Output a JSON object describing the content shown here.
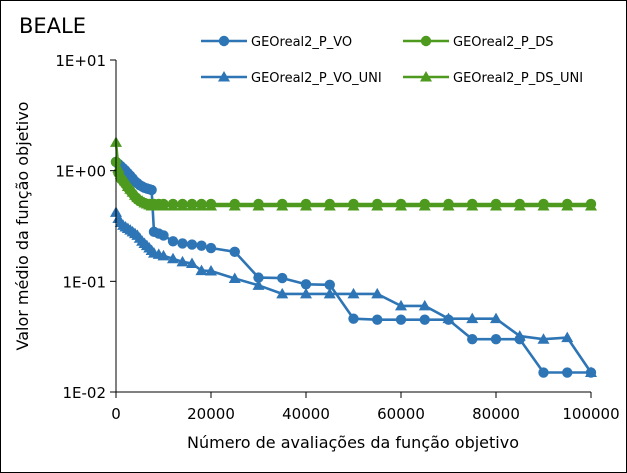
{
  "chart_data": {
    "type": "line",
    "title": "BEALE",
    "xlabel": "Número de avaliações da função objetivo",
    "ylabel": "Valor médio da função objetivo",
    "xlim": [
      0,
      100000
    ],
    "ylim": [
      0.01,
      10
    ],
    "yscale": "log",
    "x_ticks": [
      0,
      20000,
      40000,
      60000,
      80000,
      100000
    ],
    "x_tick_labels": [
      "0",
      "20000",
      "40000",
      "60000",
      "80000",
      "100000"
    ],
    "y_ticks": [
      0.01,
      0.1,
      1,
      10
    ],
    "y_tick_labels": [
      "1E-02",
      "1E-01",
      "1E+00",
      "1E+01"
    ],
    "grid": false,
    "legend_position": "top",
    "series": [
      {
        "name": "GEOreal2_P_VO",
        "color": "#2e75b6",
        "marker": "circle",
        "x": [
          0,
          500,
          1000,
          1500,
          2000,
          2500,
          3000,
          3500,
          4000,
          4500,
          5000,
          5500,
          6000,
          6500,
          7000,
          7500,
          8000,
          9000,
          10000,
          12000,
          14000,
          16000,
          18000,
          20000,
          25000,
          30000,
          35000,
          40000,
          45000,
          50000,
          55000,
          60000,
          65000,
          70000,
          75000,
          80000,
          85000,
          90000,
          95000,
          100000
        ],
        "y": [
          1.2,
          1.15,
          1.1,
          1.05,
          1.0,
          0.95,
          0.9,
          0.85,
          0.8,
          0.77,
          0.74,
          0.72,
          0.7,
          0.69,
          0.68,
          0.67,
          0.28,
          0.27,
          0.26,
          0.23,
          0.22,
          0.215,
          0.21,
          0.2,
          0.185,
          0.108,
          0.107,
          0.094,
          0.093,
          0.046,
          0.045,
          0.045,
          0.045,
          0.045,
          0.03,
          0.03,
          0.03,
          0.015,
          0.015,
          0.015
        ]
      },
      {
        "name": "GEOreal2_P_DS",
        "color": "#4d9a1f",
        "marker": "circle",
        "x": [
          0,
          500,
          1000,
          1500,
          2000,
          2500,
          3000,
          3500,
          4000,
          4500,
          5000,
          5500,
          6000,
          6500,
          7000,
          7500,
          8000,
          9000,
          10000,
          12000,
          14000,
          16000,
          18000,
          20000,
          25000,
          30000,
          35000,
          40000,
          45000,
          50000,
          55000,
          60000,
          65000,
          70000,
          75000,
          80000,
          85000,
          90000,
          95000,
          100000
        ],
        "y": [
          1.2,
          0.95,
          0.85,
          0.8,
          0.75,
          0.7,
          0.66,
          0.62,
          0.58,
          0.55,
          0.53,
          0.52,
          0.51,
          0.5,
          0.5,
          0.5,
          0.5,
          0.5,
          0.5,
          0.5,
          0.5,
          0.5,
          0.5,
          0.5,
          0.5,
          0.5,
          0.5,
          0.5,
          0.5,
          0.5,
          0.5,
          0.5,
          0.5,
          0.5,
          0.5,
          0.5,
          0.5,
          0.5,
          0.5,
          0.5
        ]
      },
      {
        "name": "GEOreal2_P_VO_UNI",
        "color": "#2e75b6",
        "marker": "triangle",
        "x": [
          0,
          500,
          1000,
          1500,
          2000,
          2500,
          3000,
          3500,
          4000,
          4500,
          5000,
          5500,
          6000,
          6500,
          7000,
          7500,
          8000,
          9000,
          10000,
          12000,
          14000,
          16000,
          18000,
          20000,
          25000,
          30000,
          35000,
          40000,
          45000,
          50000,
          55000,
          60000,
          65000,
          70000,
          75000,
          80000,
          85000,
          90000,
          95000,
          100000
        ],
        "y": [
          0.42,
          0.37,
          0.34,
          0.32,
          0.31,
          0.3,
          0.29,
          0.28,
          0.27,
          0.26,
          0.245,
          0.23,
          0.22,
          0.21,
          0.2,
          0.19,
          0.18,
          0.175,
          0.17,
          0.16,
          0.15,
          0.145,
          0.125,
          0.124,
          0.106,
          0.092,
          0.077,
          0.077,
          0.077,
          0.077,
          0.077,
          0.06,
          0.06,
          0.046,
          0.046,
          0.046,
          0.032,
          0.03,
          0.031,
          0.015
        ]
      },
      {
        "name": "GEOreal2_P_DS_UNI",
        "color": "#4d9a1f",
        "marker": "triangle",
        "x": [
          0,
          500,
          1000,
          1500,
          2000,
          2500,
          3000,
          3500,
          4000,
          4500,
          5000,
          5500,
          6000,
          6500,
          7000,
          7500,
          8000,
          9000,
          10000,
          12000,
          14000,
          16000,
          18000,
          20000,
          25000,
          30000,
          35000,
          40000,
          45000,
          50000,
          55000,
          60000,
          65000,
          70000,
          75000,
          80000,
          85000,
          90000,
          95000,
          100000
        ],
        "y": [
          1.8,
          1.05,
          0.92,
          0.85,
          0.8,
          0.72,
          0.68,
          0.64,
          0.6,
          0.57,
          0.55,
          0.53,
          0.51,
          0.5,
          0.49,
          0.48,
          0.48,
          0.48,
          0.48,
          0.48,
          0.48,
          0.48,
          0.48,
          0.48,
          0.48,
          0.48,
          0.48,
          0.48,
          0.48,
          0.48,
          0.48,
          0.48,
          0.48,
          0.48,
          0.48,
          0.48,
          0.48,
          0.48,
          0.48,
          0.48
        ]
      }
    ]
  }
}
